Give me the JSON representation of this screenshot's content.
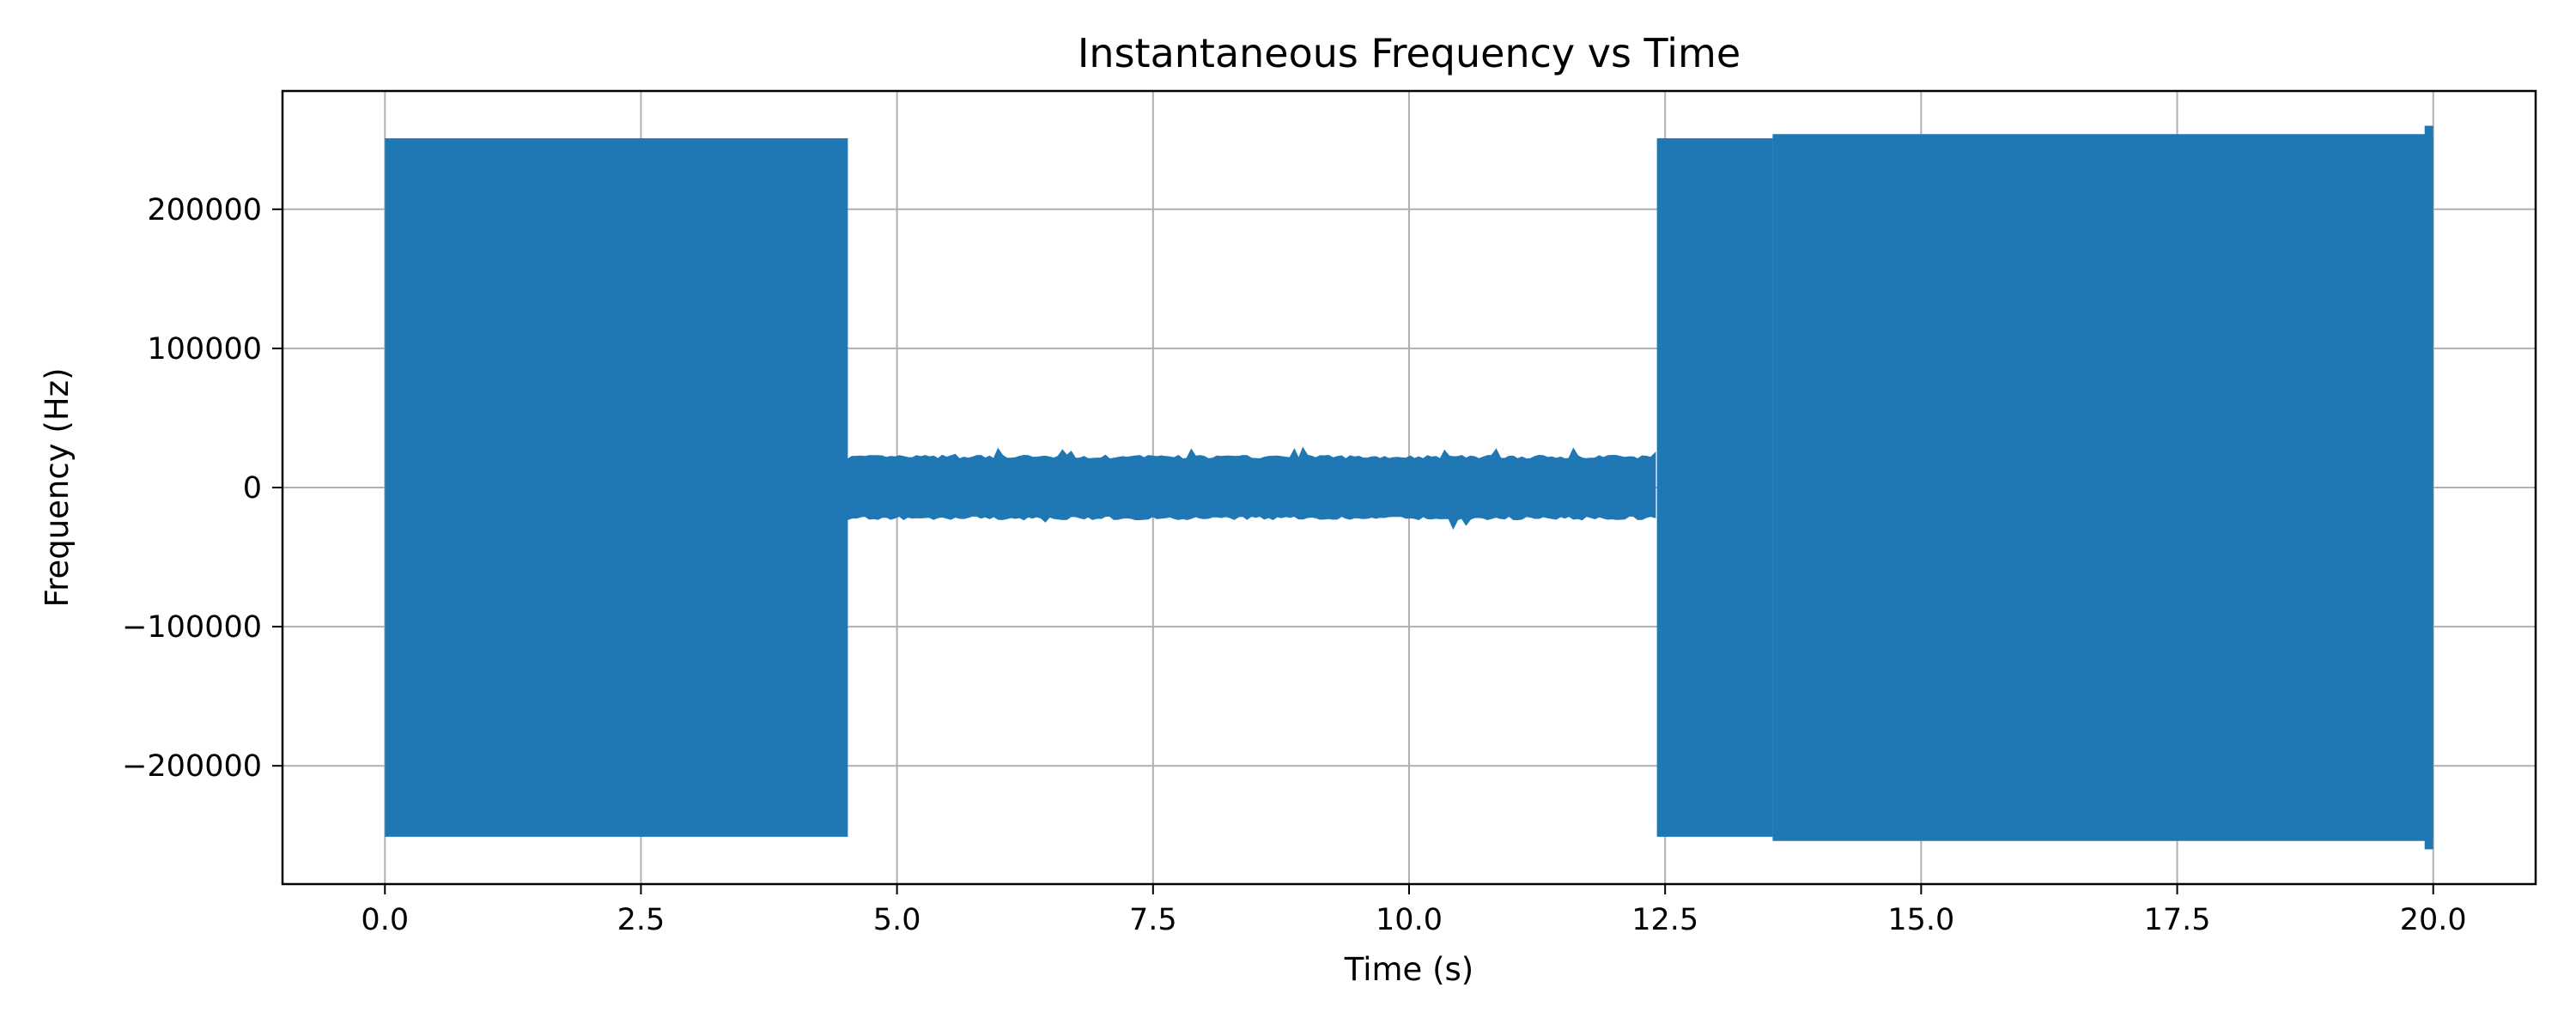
{
  "chart_data": {
    "type": "line",
    "title": "Instantaneous Frequency vs Time",
    "xlabel": "Time (s)",
    "ylabel": "Frequency (Hz)",
    "xlim": [
      -1.0,
      21.0
    ],
    "ylim": [
      -285000,
      285000
    ],
    "x_ticks": [
      0.0,
      2.5,
      5.0,
      7.5,
      10.0,
      12.5,
      15.0,
      17.5,
      20.0
    ],
    "x_tick_labels": [
      "0.0",
      "2.5",
      "5.0",
      "7.5",
      "10.0",
      "12.5",
      "15.0",
      "17.5",
      "20.0"
    ],
    "y_ticks": [
      -200000,
      -100000,
      0,
      100000,
      200000
    ],
    "y_tick_labels": [
      "−200000",
      "−100000",
      "0",
      "100000",
      "200000"
    ],
    "grid": true,
    "series": [
      {
        "color": "#1f77b4",
        "segments": [
          {
            "t_start": 0.0,
            "t_end": 4.52,
            "min_hz": -251000,
            "max_hz": 251000,
            "pattern": "dense oscillation"
          },
          {
            "t_start": 4.52,
            "t_end": 12.42,
            "min_hz": -30000,
            "max_hz": 28000,
            "typical_min_hz": -22000,
            "typical_max_hz": 22000,
            "pattern": "noise band"
          },
          {
            "t_start": 12.42,
            "t_end": 13.55,
            "min_hz": -251000,
            "max_hz": 251000,
            "pattern": "dense oscillation"
          },
          {
            "t_start": 13.55,
            "t_end": 20.0,
            "min_hz": -260000,
            "max_hz": 260000,
            "typical_min_hz": -254000,
            "typical_max_hz": 254000,
            "pattern": "dense oscillation"
          }
        ]
      }
    ]
  }
}
